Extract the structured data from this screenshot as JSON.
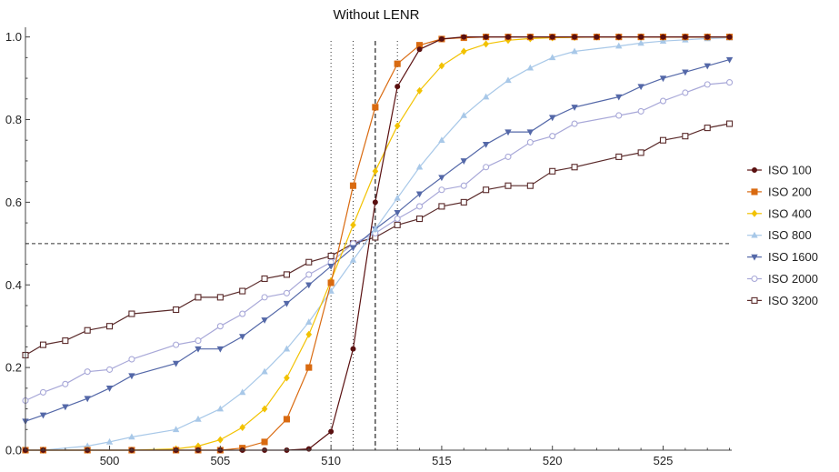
{
  "chart_data": {
    "type": "line",
    "title": "Without LENR",
    "xlabel": "",
    "ylabel": "",
    "xlim": [
      496.2,
      528.1
    ],
    "ylim": [
      0,
      1.03
    ],
    "xticks": [
      500,
      505,
      510,
      515,
      520,
      525
    ],
    "yticks": [
      0.0,
      0.2,
      0.4,
      0.6,
      0.8,
      1.0
    ],
    "ytick_labels": [
      "0.0",
      "0.2",
      "0.4",
      "0.6",
      "0.8",
      "1.0"
    ],
    "grid": false,
    "legend_position": "right",
    "reference_lines": {
      "horizontal": [
        {
          "y": 0.5,
          "style": "dashed"
        }
      ],
      "vertical": [
        {
          "x": 510,
          "style": "dotted"
        },
        {
          "x": 511,
          "style": "dotted"
        },
        {
          "x": 512,
          "style": "dashed"
        },
        {
          "x": 513,
          "style": "dotted"
        }
      ]
    },
    "series": [
      {
        "name": "ISO 100",
        "color": "#5a1010",
        "marker": "circle-filled",
        "x": [
          496,
          497,
          499,
          501,
          503,
          504,
          505,
          506,
          507,
          508,
          509,
          510,
          511,
          512,
          513,
          514,
          515,
          516,
          517,
          518,
          519,
          520,
          521,
          522,
          523,
          524,
          525,
          526,
          527,
          528
        ],
        "y": [
          0,
          0,
          0,
          0,
          0,
          0,
          0,
          0,
          0,
          0,
          0.003,
          0.045,
          0.245,
          0.6,
          0.88,
          0.97,
          0.995,
          1,
          1,
          1,
          1,
          1,
          1,
          1,
          1,
          1,
          1,
          1,
          1,
          1
        ]
      },
      {
        "name": "ISO 200",
        "color": "#d96a10",
        "marker": "square-filled",
        "x": [
          496,
          497,
          499,
          501,
          503,
          504,
          505,
          506,
          507,
          508,
          509,
          510,
          511,
          512,
          513,
          514,
          515,
          516,
          517,
          518,
          519,
          520,
          521,
          522,
          523,
          524,
          525,
          526,
          527,
          528
        ],
        "y": [
          0,
          0,
          0,
          0,
          0,
          0,
          0,
          0.005,
          0.02,
          0.075,
          0.2,
          0.405,
          0.64,
          0.83,
          0.935,
          0.98,
          0.995,
          0.998,
          1,
          1,
          1,
          1,
          1,
          1,
          1,
          1,
          1,
          1,
          1,
          1
        ]
      },
      {
        "name": "ISO 400",
        "color": "#f2c200",
        "marker": "diamond-filled",
        "x": [
          496,
          497,
          499,
          501,
          503,
          504,
          505,
          506,
          507,
          508,
          509,
          510,
          511,
          512,
          513,
          514,
          515,
          516,
          517,
          518,
          519,
          520,
          521,
          522,
          523,
          524,
          525,
          526,
          527,
          528
        ],
        "y": [
          0,
          0,
          0,
          0,
          0.003,
          0.01,
          0.025,
          0.055,
          0.1,
          0.175,
          0.28,
          0.41,
          0.545,
          0.675,
          0.785,
          0.87,
          0.93,
          0.965,
          0.983,
          0.992,
          0.996,
          0.998,
          0.999,
          1,
          1,
          1,
          1,
          1,
          1,
          1
        ]
      },
      {
        "name": "ISO 800",
        "color": "#a8c8e8",
        "marker": "triangle-up-filled",
        "x": [
          496,
          497,
          499,
          500,
          501,
          503,
          504,
          505,
          506,
          507,
          508,
          509,
          510,
          511,
          512,
          513,
          514,
          515,
          516,
          517,
          518,
          519,
          520,
          521,
          523,
          524,
          525,
          526,
          527,
          528
        ],
        "y": [
          0,
          0,
          0.01,
          0.02,
          0.032,
          0.05,
          0.075,
          0.1,
          0.14,
          0.19,
          0.245,
          0.31,
          0.385,
          0.46,
          0.535,
          0.61,
          0.685,
          0.75,
          0.81,
          0.855,
          0.895,
          0.925,
          0.95,
          0.965,
          0.978,
          0.985,
          0.99,
          0.993,
          0.996,
          0.998
        ]
      },
      {
        "name": "ISO 1600",
        "color": "#5468a8",
        "marker": "triangle-down-filled",
        "x": [
          496,
          497,
          498,
          499,
          500,
          501,
          503,
          504,
          505,
          506,
          507,
          508,
          509,
          510,
          511,
          512,
          513,
          514,
          515,
          516,
          517,
          518,
          519,
          520,
          521,
          523,
          524,
          525,
          526,
          527,
          528
        ],
        "y": [
          0.07,
          0.085,
          0.105,
          0.125,
          0.15,
          0.18,
          0.21,
          0.245,
          0.245,
          0.275,
          0.315,
          0.355,
          0.4,
          0.445,
          0.49,
          0.535,
          0.575,
          0.62,
          0.66,
          0.7,
          0.74,
          0.77,
          0.77,
          0.805,
          0.83,
          0.855,
          0.88,
          0.9,
          0.915,
          0.93,
          0.945
        ]
      },
      {
        "name": "ISO 2000",
        "color": "#a8a8d8",
        "marker": "circle-open",
        "x": [
          496,
          497,
          498,
          499,
          500,
          501,
          503,
          504,
          505,
          506,
          507,
          508,
          509,
          510,
          511,
          512,
          513,
          514,
          515,
          516,
          517,
          518,
          519,
          520,
          521,
          523,
          524,
          525,
          526,
          527,
          528
        ],
        "y": [
          0.12,
          0.14,
          0.16,
          0.19,
          0.195,
          0.22,
          0.255,
          0.265,
          0.3,
          0.33,
          0.37,
          0.38,
          0.425,
          0.455,
          0.5,
          0.525,
          0.56,
          0.59,
          0.63,
          0.64,
          0.685,
          0.71,
          0.745,
          0.76,
          0.79,
          0.81,
          0.82,
          0.845,
          0.865,
          0.885,
          0.89
        ]
      },
      {
        "name": "ISO 3200",
        "color": "#5a2a2a",
        "marker": "square-open",
        "x": [
          496,
          497,
          498,
          499,
          500,
          501,
          503,
          504,
          505,
          506,
          507,
          508,
          509,
          510,
          511,
          512,
          513,
          514,
          515,
          516,
          517,
          518,
          519,
          520,
          521,
          523,
          524,
          525,
          526,
          527,
          528
        ],
        "y": [
          0.23,
          0.255,
          0.265,
          0.29,
          0.3,
          0.33,
          0.34,
          0.37,
          0.37,
          0.385,
          0.415,
          0.425,
          0.455,
          0.47,
          0.5,
          0.515,
          0.545,
          0.56,
          0.59,
          0.6,
          0.63,
          0.64,
          0.64,
          0.675,
          0.685,
          0.71,
          0.72,
          0.75,
          0.76,
          0.78,
          0.79
        ]
      }
    ]
  }
}
